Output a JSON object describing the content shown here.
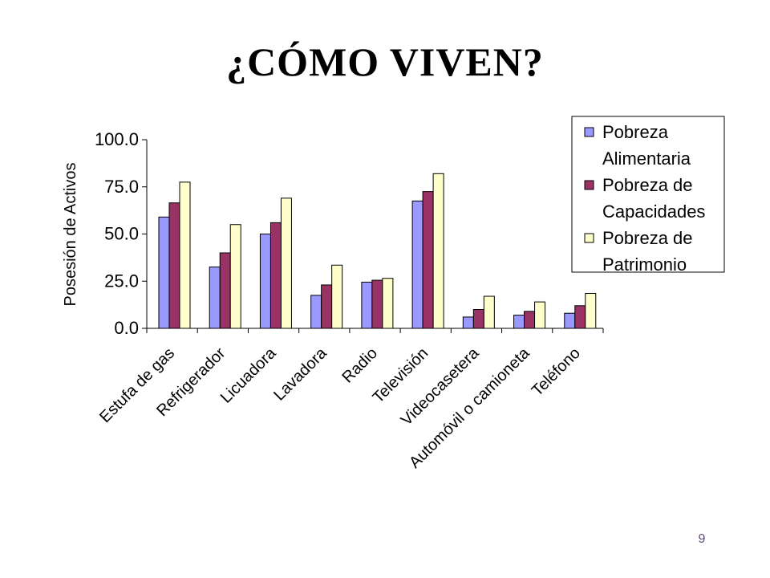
{
  "slide": {
    "title": "¿CÓMO VIVEN?",
    "page_number": "9"
  },
  "chart_data": {
    "type": "bar",
    "title": "",
    "xlabel": "",
    "ylabel": "Posesión de Activos",
    "ylim": [
      0,
      100
    ],
    "yticks": [
      "100.0",
      "75.0",
      "50.0",
      "25.0",
      "0.0"
    ],
    "ytick_values": [
      100,
      75,
      50,
      25,
      0
    ],
    "grid": false,
    "legend_position": "top-right",
    "categories": [
      "Estufa de gas",
      "Refrigerador",
      "Licuadora",
      "Lavadora",
      "Radio",
      "Televisión",
      "Videocasetera",
      "Automóvil o camioneta",
      "Teléfono"
    ],
    "series": [
      {
        "name": "Pobreza Alimentaria",
        "legend_lines": [
          "Pobreza",
          "Alimentaria"
        ],
        "color": "#9999ff",
        "values": [
          59.0,
          32.5,
          50.0,
          17.5,
          24.5,
          67.5,
          6.0,
          7.0,
          8.0
        ]
      },
      {
        "name": "Pobreza de Capacidades",
        "legend_lines": [
          "Pobreza de",
          "Capacidades"
        ],
        "color": "#993366",
        "values": [
          66.5,
          40.0,
          56.0,
          23.0,
          25.5,
          72.5,
          10.0,
          9.0,
          12.0
        ]
      },
      {
        "name": "Pobreza de Patrimonio",
        "legend_lines": [
          "Pobreza de",
          "Patrimonio"
        ],
        "color": "#ffffcc",
        "values": [
          77.5,
          55.0,
          69.0,
          33.5,
          26.5,
          82.0,
          17.0,
          14.0,
          18.5
        ]
      }
    ]
  }
}
